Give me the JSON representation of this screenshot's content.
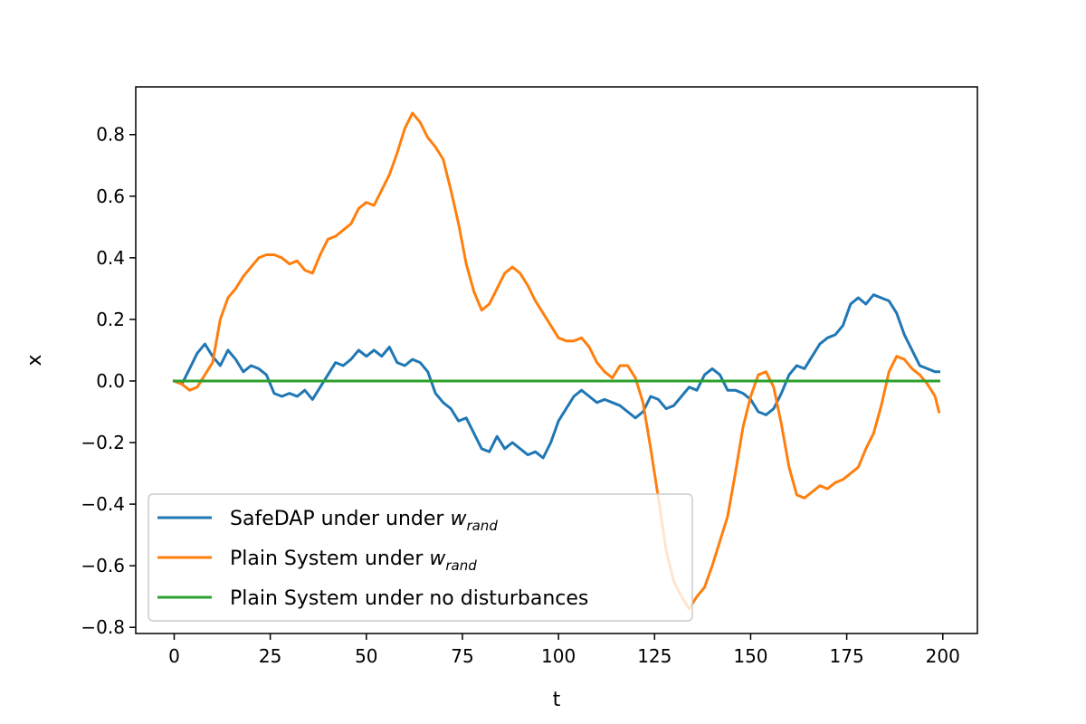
{
  "chart_data": {
    "type": "line",
    "title": "",
    "xlabel": "t",
    "ylabel": "x",
    "xlim": [
      -10,
      209
    ],
    "ylim": [
      -0.82,
      0.955
    ],
    "xticks": [
      0,
      25,
      50,
      75,
      100,
      125,
      150,
      175,
      200
    ],
    "yticks": [
      -0.8,
      -0.6,
      -0.4,
      -0.2,
      0.0,
      0.2,
      0.4,
      0.6,
      0.8
    ],
    "ytick_labels": [
      "−0.8",
      "−0.6",
      "−0.4",
      "−0.2",
      "0.0",
      "0.2",
      "0.4",
      "0.6",
      "0.8"
    ],
    "grid": false,
    "legend_position": "lower-left",
    "series": [
      {
        "name": "SafeDAP under under w_rand",
        "legend_main": "SafeDAP under under ",
        "legend_var": "w",
        "legend_sub": "rand",
        "color": "#1f77b4",
        "x": [
          0,
          2,
          4,
          6,
          8,
          10,
          12,
          14,
          16,
          18,
          20,
          22,
          24,
          26,
          28,
          30,
          32,
          34,
          36,
          38,
          40,
          42,
          44,
          46,
          48,
          50,
          52,
          54,
          56,
          58,
          60,
          62,
          64,
          66,
          68,
          70,
          72,
          74,
          76,
          78,
          80,
          82,
          84,
          86,
          88,
          90,
          92,
          94,
          96,
          98,
          100,
          102,
          104,
          106,
          108,
          110,
          112,
          114,
          116,
          118,
          120,
          122,
          124,
          126,
          128,
          130,
          132,
          134,
          136,
          138,
          140,
          142,
          144,
          146,
          148,
          150,
          152,
          154,
          156,
          158,
          160,
          162,
          164,
          166,
          168,
          170,
          172,
          174,
          176,
          178,
          180,
          182,
          184,
          186,
          188,
          190,
          192,
          194,
          196,
          198,
          199
        ],
        "y": [
          0.0,
          -0.01,
          0.04,
          0.09,
          0.12,
          0.08,
          0.05,
          0.1,
          0.07,
          0.03,
          0.05,
          0.04,
          0.02,
          -0.04,
          -0.05,
          -0.04,
          -0.05,
          -0.03,
          -0.06,
          -0.02,
          0.02,
          0.06,
          0.05,
          0.07,
          0.1,
          0.08,
          0.1,
          0.08,
          0.11,
          0.06,
          0.05,
          0.07,
          0.06,
          0.03,
          -0.04,
          -0.07,
          -0.09,
          -0.13,
          -0.12,
          -0.17,
          -0.22,
          -0.23,
          -0.18,
          -0.22,
          -0.2,
          -0.22,
          -0.24,
          -0.23,
          -0.25,
          -0.2,
          -0.13,
          -0.09,
          -0.05,
          -0.03,
          -0.05,
          -0.07,
          -0.06,
          -0.07,
          -0.08,
          -0.1,
          -0.12,
          -0.1,
          -0.05,
          -0.06,
          -0.09,
          -0.08,
          -0.05,
          -0.02,
          -0.03,
          0.02,
          0.04,
          0.02,
          -0.03,
          -0.03,
          -0.04,
          -0.06,
          -0.1,
          -0.11,
          -0.09,
          -0.04,
          0.02,
          0.05,
          0.04,
          0.08,
          0.12,
          0.14,
          0.15,
          0.18,
          0.25,
          0.27,
          0.25,
          0.28,
          0.27,
          0.26,
          0.22,
          0.15,
          0.1,
          0.05,
          0.04,
          0.03,
          0.03
        ]
      },
      {
        "name": "Plain System under w_rand",
        "legend_main": "Plain System under ",
        "legend_var": "w",
        "legend_sub": "rand",
        "color": "#ff7f0e",
        "x": [
          0,
          2,
          4,
          6,
          8,
          10,
          12,
          14,
          16,
          18,
          20,
          22,
          24,
          26,
          28,
          30,
          32,
          34,
          36,
          38,
          40,
          42,
          44,
          46,
          48,
          50,
          52,
          54,
          56,
          58,
          60,
          62,
          64,
          66,
          68,
          70,
          72,
          74,
          76,
          78,
          80,
          82,
          84,
          86,
          88,
          90,
          92,
          94,
          96,
          98,
          100,
          102,
          104,
          106,
          108,
          110,
          112,
          114,
          116,
          118,
          120,
          122,
          124,
          126,
          128,
          130,
          132,
          134,
          136,
          138,
          140,
          142,
          144,
          146,
          148,
          150,
          152,
          154,
          156,
          158,
          160,
          162,
          164,
          166,
          168,
          170,
          172,
          174,
          176,
          178,
          180,
          182,
          184,
          186,
          188,
          190,
          192,
          194,
          196,
          198,
          199
        ],
        "y": [
          0.0,
          -0.01,
          -0.03,
          -0.02,
          0.02,
          0.06,
          0.2,
          0.27,
          0.3,
          0.34,
          0.37,
          0.4,
          0.41,
          0.41,
          0.4,
          0.38,
          0.39,
          0.36,
          0.35,
          0.41,
          0.46,
          0.47,
          0.49,
          0.51,
          0.56,
          0.58,
          0.57,
          0.62,
          0.67,
          0.74,
          0.82,
          0.87,
          0.84,
          0.79,
          0.76,
          0.72,
          0.62,
          0.51,
          0.38,
          0.29,
          0.23,
          0.25,
          0.3,
          0.35,
          0.37,
          0.35,
          0.31,
          0.26,
          0.22,
          0.18,
          0.14,
          0.13,
          0.13,
          0.14,
          0.11,
          0.06,
          0.03,
          0.01,
          0.05,
          0.05,
          0.01,
          -0.07,
          -0.22,
          -0.38,
          -0.55,
          -0.65,
          -0.7,
          -0.74,
          -0.7,
          -0.67,
          -0.6,
          -0.52,
          -0.44,
          -0.3,
          -0.15,
          -0.05,
          0.02,
          0.03,
          -0.02,
          -0.14,
          -0.28,
          -0.37,
          -0.38,
          -0.36,
          -0.34,
          -0.35,
          -0.33,
          -0.32,
          -0.3,
          -0.28,
          -0.22,
          -0.17,
          -0.08,
          0.03,
          0.08,
          0.07,
          0.04,
          0.02,
          -0.01,
          -0.05,
          -0.1
        ]
      },
      {
        "name": "Plain System under no disturbances",
        "legend_main": "Plain System under no disturbances",
        "legend_var": "",
        "legend_sub": "",
        "color": "#2ca02c",
        "x": [
          0,
          199
        ],
        "y": [
          0.0,
          0.0
        ]
      }
    ]
  }
}
